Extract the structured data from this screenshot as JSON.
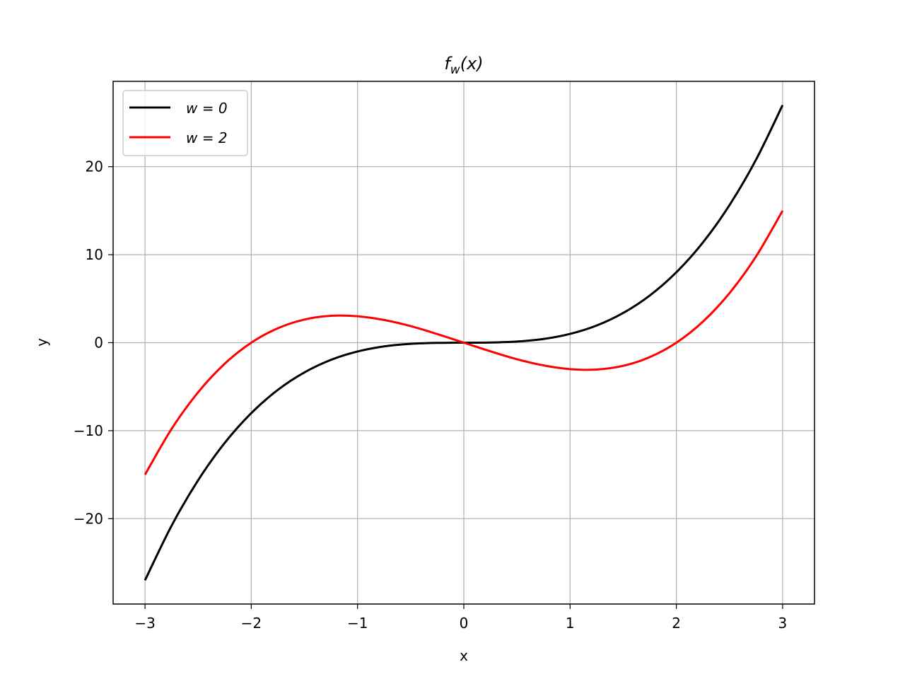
{
  "chart_data": {
    "type": "line",
    "title": "f_w(x)",
    "title_parts": {
      "main": "f",
      "sub": "w",
      "rest": "(x)"
    },
    "xlabel": "x",
    "ylabel": "y",
    "xlim": [
      -3.3,
      3.3
    ],
    "ylim": [
      -29.7,
      29.7
    ],
    "x_ticks": [
      -3,
      -2,
      -1,
      0,
      1,
      2,
      3
    ],
    "x_tick_labels": [
      "−3",
      "−2",
      "−1",
      "0",
      "1",
      "2",
      "3"
    ],
    "y_ticks": [
      -20,
      -10,
      0,
      10,
      20
    ],
    "y_tick_labels": [
      "−20",
      "−10",
      "0",
      "10",
      "20"
    ],
    "grid": true,
    "legend_position": "top-left",
    "x": [
      -3.0,
      -2.75,
      -2.5,
      -2.25,
      -2.0,
      -1.75,
      -1.5,
      -1.25,
      -1.0,
      -0.75,
      -0.5,
      -0.25,
      0.0,
      0.25,
      0.5,
      0.75,
      1.0,
      1.25,
      1.5,
      1.75,
      2.0,
      2.25,
      2.5,
      2.75,
      3.0
    ],
    "series": [
      {
        "name": "w = 0",
        "legend_text": "w = 0",
        "color": "#000000",
        "values": [
          -27.0,
          -20.8,
          -15.63,
          -11.39,
          -8.0,
          -5.36,
          -3.38,
          -1.95,
          -1.0,
          -0.42,
          -0.13,
          -0.02,
          0.0,
          0.02,
          0.13,
          0.42,
          1.0,
          1.95,
          3.38,
          5.36,
          8.0,
          11.39,
          15.63,
          20.8,
          27.0
        ]
      },
      {
        "name": "w = 2",
        "legend_text": "w = 2",
        "color": "#ff0000",
        "values": [
          -15.0,
          -9.8,
          -5.63,
          -2.39,
          0.0,
          1.64,
          2.63,
          3.05,
          3.0,
          2.58,
          1.88,
          0.98,
          0.0,
          -0.98,
          -1.88,
          -2.58,
          -3.0,
          -3.05,
          -2.63,
          -1.64,
          0.0,
          2.39,
          5.63,
          9.8,
          15.0
        ]
      }
    ]
  }
}
